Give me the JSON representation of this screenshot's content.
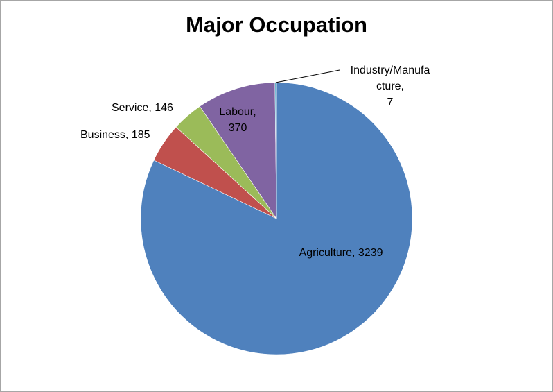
{
  "chart_data": {
    "type": "pie",
    "title": "Major Occupation",
    "slices": [
      {
        "label": "Agriculture",
        "value": 3239,
        "color": "#4F81BD",
        "label_lines": [
          "Agriculture, 3239"
        ]
      },
      {
        "label": "Business",
        "value": 185,
        "color": "#C0504D",
        "label_lines": [
          "Business, 185"
        ]
      },
      {
        "label": "Service",
        "value": 146,
        "color": "#9BBB59",
        "label_lines": [
          "Service, 146"
        ]
      },
      {
        "label": "Labour",
        "value": 370,
        "color": "#8064A2",
        "label_lines": [
          "Labour,",
          "370"
        ]
      },
      {
        "label": "Industry/Manufacture",
        "value": 7,
        "color": "#4BACC6",
        "label_lines": [
          "Industry/Manufa",
          "cture,",
          "7"
        ]
      }
    ],
    "legend": "none",
    "data_labels": "category name and value"
  }
}
